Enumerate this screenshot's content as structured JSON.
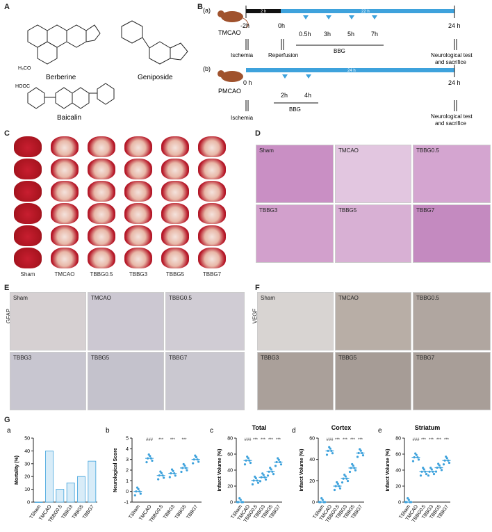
{
  "panels": {
    "A": "A",
    "B": "B",
    "C": "C",
    "D": "D",
    "E": "E",
    "F": "F",
    "G": "G"
  },
  "panelA": {
    "compounds": [
      "Berberine",
      "Geniposide",
      "Baicalin"
    ]
  },
  "panelB": {
    "a": {
      "tag": "(a)",
      "model": "TMCAO",
      "bar1": "2 h",
      "bar2": "22 h",
      "times": [
        "-2h",
        "0h",
        "0.5h",
        "3h",
        "5h",
        "7h",
        "24 h"
      ],
      "labels": [
        "Ischemia",
        "Reperfusion",
        "BBG",
        "Neurological test",
        "and sacrifice"
      ]
    },
    "b": {
      "tag": "(b)",
      "model": "PMCAO",
      "bar": "24 h",
      "times": [
        "0 h",
        "2h",
        "4h",
        "24 h"
      ],
      "labels": [
        "Ischemia",
        "BBG",
        "Neurological test",
        "and sacrifice"
      ]
    }
  },
  "panelC": {
    "groups": [
      "Sham",
      "TMCAO",
      "TBBG0.5",
      "TBBG3",
      "TBBG5",
      "TBBG7"
    ]
  },
  "panelD": {
    "tiles": [
      "Sham",
      "TMCAO",
      "TBBG0.5",
      "TBBG3",
      "TBBG5",
      "TBBG7"
    ]
  },
  "panelE": {
    "side": "GFAP",
    "tiles": [
      "Sham",
      "TMCAO",
      "TBBG0.5",
      "TBBG3",
      "TBBG5",
      "TBBG7"
    ]
  },
  "panelF": {
    "side": "VEGF",
    "tiles": [
      "Sham",
      "TMCAO",
      "TBBG0.5",
      "TBBG3",
      "TBBG5",
      "TBBG7"
    ]
  },
  "colors": {
    "he": "#c98fc4",
    "ihc_light": "#d9d6dd",
    "ihc_dark": "#a8a4ab",
    "tcc_red": "#b3172a",
    "series": "#3ea2dc"
  },
  "chart_data": [
    {
      "type": "bar",
      "tag": "a",
      "categories": [
        "TSham",
        "TMCAO",
        "TBBG0.5",
        "TBBG3",
        "TBBG5",
        "TBBG7"
      ],
      "values": [
        0,
        40,
        10,
        15,
        20,
        32
      ],
      "ylabel": "Mortality (%)",
      "ylim": [
        0,
        50
      ],
      "yticks": [
        "0",
        "10",
        "20",
        "30",
        "40",
        "50"
      ]
    },
    {
      "type": "scatter",
      "tag": "b",
      "categories": [
        "TSham",
        "TMCAO",
        "TBBG0.5",
        "TBBG3",
        "TBBG5",
        "TBBG7"
      ],
      "means": [
        0,
        3.1,
        1.5,
        1.7,
        2.2,
        3.0
      ],
      "ylabel": "Neurological Score",
      "ylim": [
        -1,
        5
      ],
      "yticks": [
        "-1",
        "0",
        "1",
        "2",
        "3",
        "4",
        "5"
      ],
      "sig": [
        "###",
        "***",
        "***",
        "***"
      ]
    },
    {
      "type": "scatter",
      "tag": "c",
      "title": "Total",
      "categories": [
        "TSham",
        "TMCAO",
        "TBBG0.5",
        "TBBG3",
        "TBBG5",
        "TBBG7"
      ],
      "means": [
        0,
        52,
        27,
        31,
        38,
        50
      ],
      "ylabel": "Infarct Volume (%)",
      "ylim": [
        0,
        80
      ],
      "yticks": [
        "0",
        "20",
        "40",
        "60",
        "80"
      ],
      "sig": [
        "###",
        "***",
        "***",
        "***",
        "***"
      ]
    },
    {
      "type": "scatter",
      "tag": "d",
      "title": "Cortex",
      "categories": [
        "TSham",
        "TMCAO",
        "TBBG0.5",
        "TBBG3",
        "TBBG5",
        "TBBG7"
      ],
      "means": [
        0,
        48,
        15,
        22,
        32,
        46
      ],
      "ylabel": "Infarct Volume (%)",
      "ylim": [
        0,
        60
      ],
      "yticks": [
        "0",
        "20",
        "40",
        "60"
      ],
      "sig": [
        "###",
        "***",
        "***",
        "***",
        "***"
      ]
    },
    {
      "type": "scatter",
      "tag": "e",
      "title": "Striatum",
      "categories": [
        "TSham",
        "TMCAO",
        "TBBG0.5",
        "TBBG3",
        "TBBG5",
        "TBBG7"
      ],
      "means": [
        0,
        56,
        38,
        38,
        43,
        52
      ],
      "ylabel": "Infarct Volume (%)",
      "ylim": [
        0,
        80
      ],
      "yticks": [
        "0",
        "20",
        "40",
        "60",
        "80"
      ],
      "sig": [
        "###",
        "***",
        "***",
        "***",
        "***"
      ]
    }
  ]
}
